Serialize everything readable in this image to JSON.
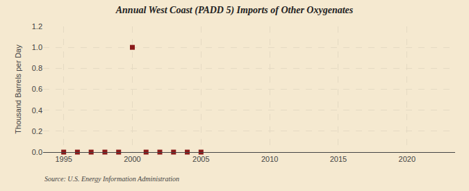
{
  "chart_data": {
    "type": "scatter",
    "title": "Annual West Coast (PADD 5) Imports of Other Oxygenates",
    "ylabel": "Thousand Barrels per Day",
    "annotations": [
      "Source: U.S. Energy Information Administration"
    ],
    "x": [
      1995,
      1996,
      1997,
      1998,
      1999,
      2000,
      2001,
      2002,
      2003,
      2004,
      2005
    ],
    "values": [
      0.0,
      0.0,
      0.0,
      0.0,
      0.0,
      1.0,
      0.0,
      0.0,
      0.0,
      0.0,
      0.0
    ],
    "color": "#8b1a1a",
    "marker": "square",
    "background_color": "#f5e9d0",
    "xlim": [
      1993.5,
      2023.5
    ],
    "xticks": [
      1995,
      2000,
      2005,
      2010,
      2015,
      2020
    ],
    "ylim": [
      0.0,
      1.2
    ],
    "yticks": [
      {
        "value": 0.0,
        "label": "0.0"
      },
      0.2,
      0.4,
      0.6,
      0.8,
      {
        "value": 1.0,
        "label": "1.0"
      },
      1.2
    ],
    "grid": true
  }
}
